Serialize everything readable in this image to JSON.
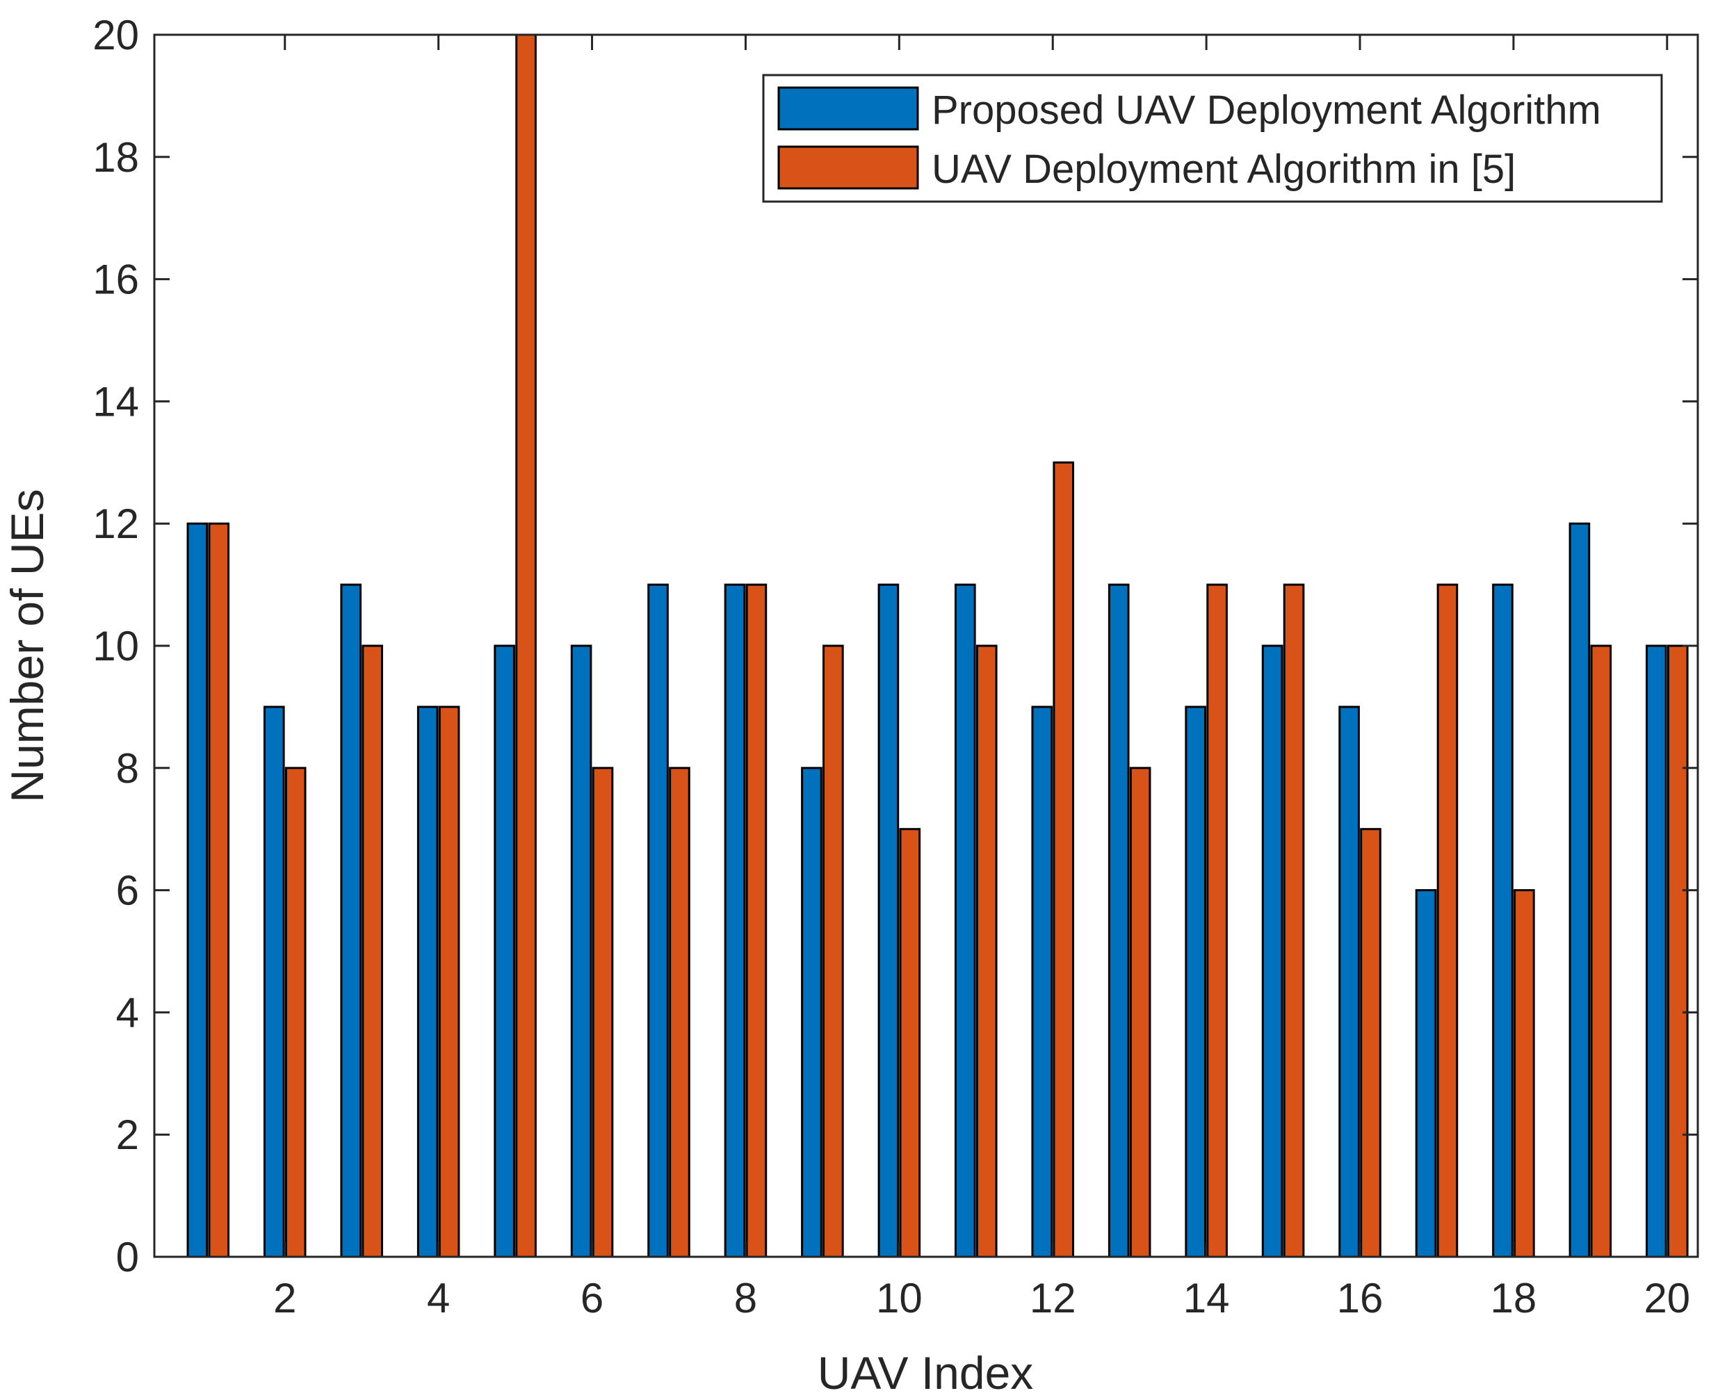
{
  "chart_data": {
    "type": "bar",
    "title": "",
    "xlabel": "UAV Index",
    "ylabel": "Number of UEs",
    "categories": [
      1,
      2,
      3,
      4,
      5,
      6,
      7,
      8,
      9,
      10,
      11,
      12,
      13,
      14,
      15,
      16,
      17,
      18,
      19,
      20
    ],
    "xticks": [
      2,
      4,
      6,
      8,
      10,
      12,
      14,
      16,
      18,
      20
    ],
    "xticklabels": [
      "2",
      "4",
      "6",
      "8",
      "10",
      "12",
      "14",
      "16",
      "18",
      "20"
    ],
    "xlim": [
      0.3,
      20.4
    ],
    "ylim": [
      0,
      20
    ],
    "yticks": [
      0,
      2,
      4,
      6,
      8,
      10,
      12,
      14,
      16,
      18,
      20
    ],
    "yticklabels": [
      "0",
      "2",
      "4",
      "6",
      "8",
      "10",
      "12",
      "14",
      "16",
      "18",
      "20"
    ],
    "grid": false,
    "legend_position": "top-right",
    "series": [
      {
        "name": "Proposed UAV Deployment Algorithm",
        "color": "#0072BD",
        "values": [
          12,
          9,
          11,
          9,
          10,
          10,
          11,
          11,
          8,
          11,
          11,
          9,
          11,
          9,
          10,
          9,
          6,
          11,
          12,
          10
        ]
      },
      {
        "name": "UAV Deployment Algorithm in [5]",
        "color": "#D95319",
        "values": [
          12,
          8,
          10,
          9,
          20,
          8,
          8,
          11,
          10,
          7,
          10,
          13,
          8,
          11,
          11,
          7,
          11,
          6,
          10,
          10
        ]
      }
    ]
  }
}
